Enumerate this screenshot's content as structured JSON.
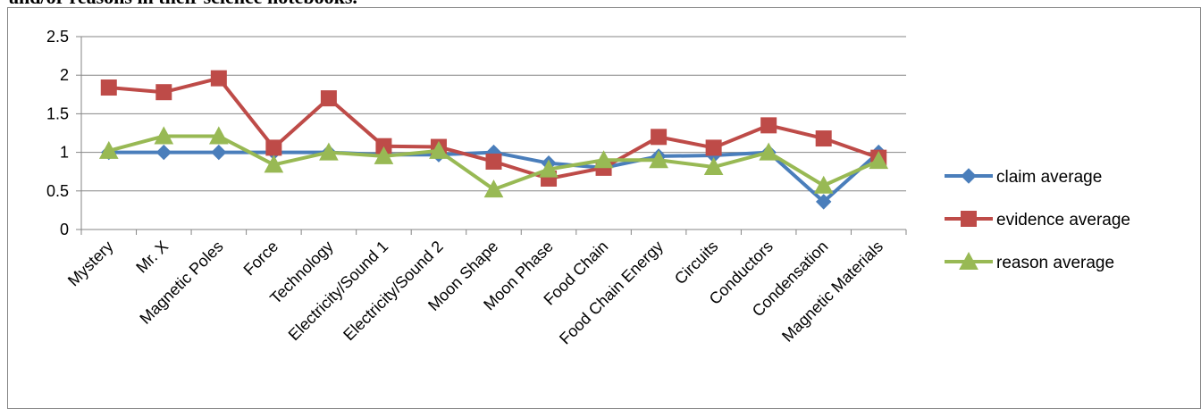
{
  "caption": "and/or reasons in their science notebooks.",
  "chart_data": {
    "type": "line",
    "categories": [
      "Mystery",
      "Mr. X",
      "Magnetic Poles",
      "Force",
      "Technology",
      "Electricity/Sound 1",
      "Electricity/Sound 2",
      "Moon Shape",
      "Moon Phase",
      "Food Chain",
      "Food Chain Energy",
      "Circuits",
      "Conductors",
      "Condensation",
      "Magnetic Materials"
    ],
    "ylim": [
      0,
      2.5
    ],
    "yticks": [
      "0",
      "0.5",
      "1",
      "1.5",
      "2",
      "2.5"
    ],
    "grid": true,
    "legend_position": "right",
    "title": "",
    "xlabel": "",
    "ylabel": "",
    "series": [
      {
        "name": "claim average",
        "color": "#4a7ebb",
        "marker": "diamond",
        "values": [
          1.0,
          1.0,
          1.0,
          1.0,
          1.0,
          0.97,
          0.97,
          1.0,
          0.86,
          0.8,
          0.95,
          0.96,
          1.0,
          0.36,
          1.0
        ]
      },
      {
        "name": "evidence average",
        "color": "#be4b48",
        "marker": "square",
        "values": [
          1.84,
          1.78,
          1.96,
          1.06,
          1.7,
          1.08,
          1.07,
          0.88,
          0.66,
          0.8,
          1.2,
          1.06,
          1.35,
          1.18,
          0.93
        ]
      },
      {
        "name": "reason average",
        "color": "#98b954",
        "marker": "triangle",
        "values": [
          1.02,
          1.21,
          1.21,
          0.84,
          1.0,
          0.95,
          1.02,
          0.52,
          0.78,
          0.9,
          0.9,
          0.81,
          1.0,
          0.57,
          0.89
        ]
      }
    ]
  }
}
